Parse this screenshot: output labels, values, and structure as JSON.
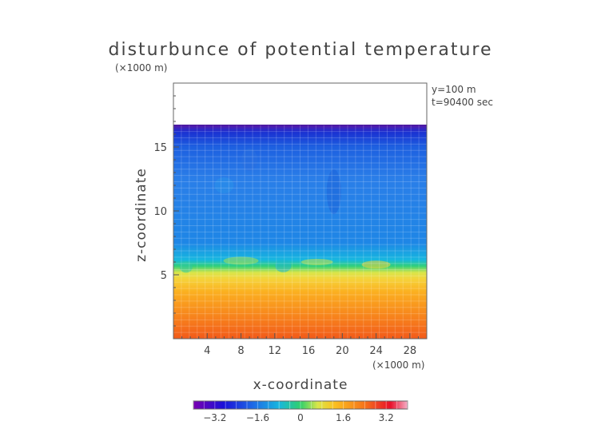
{
  "chart_data": {
    "type": "heatmap",
    "title": "disturbunce of potential temperature",
    "y_unit_label": "(×1000 m)",
    "x_unit_label": "(×1000 m)",
    "xlabel": "x-coordinate",
    "ylabel": "z-coordinate",
    "annotations": [
      "y=100 m",
      "t=90400 sec"
    ],
    "xlim": [
      0,
      30
    ],
    "ylim": [
      0,
      20
    ],
    "x_ticks": [
      4,
      8,
      12,
      16,
      20,
      24,
      28
    ],
    "y_ticks": [
      5,
      10,
      15
    ],
    "colorbar": {
      "min": -4,
      "max": 4,
      "tick_values": [
        -3.2,
        -1.6,
        0,
        1.6,
        3.2
      ],
      "tick_labels": [
        "−3.2",
        "−1.6",
        "0",
        "1.6",
        "3.2"
      ]
    },
    "field_description_by_height": [
      {
        "z": 0.5,
        "value": 3.0
      },
      {
        "z": 2.0,
        "value": 2.4
      },
      {
        "z": 3.5,
        "value": 1.6
      },
      {
        "z": 5.0,
        "value": 1.0
      },
      {
        "z": 6.0,
        "value": -0.4
      },
      {
        "z": 7.0,
        "value": -2.2
      },
      {
        "z": 10.0,
        "value": -2.4
      },
      {
        "z": 15.0,
        "value": -2.6
      },
      {
        "z": 16.5,
        "value": -3.6
      }
    ],
    "data_top_z": 16.7,
    "grid": true
  }
}
